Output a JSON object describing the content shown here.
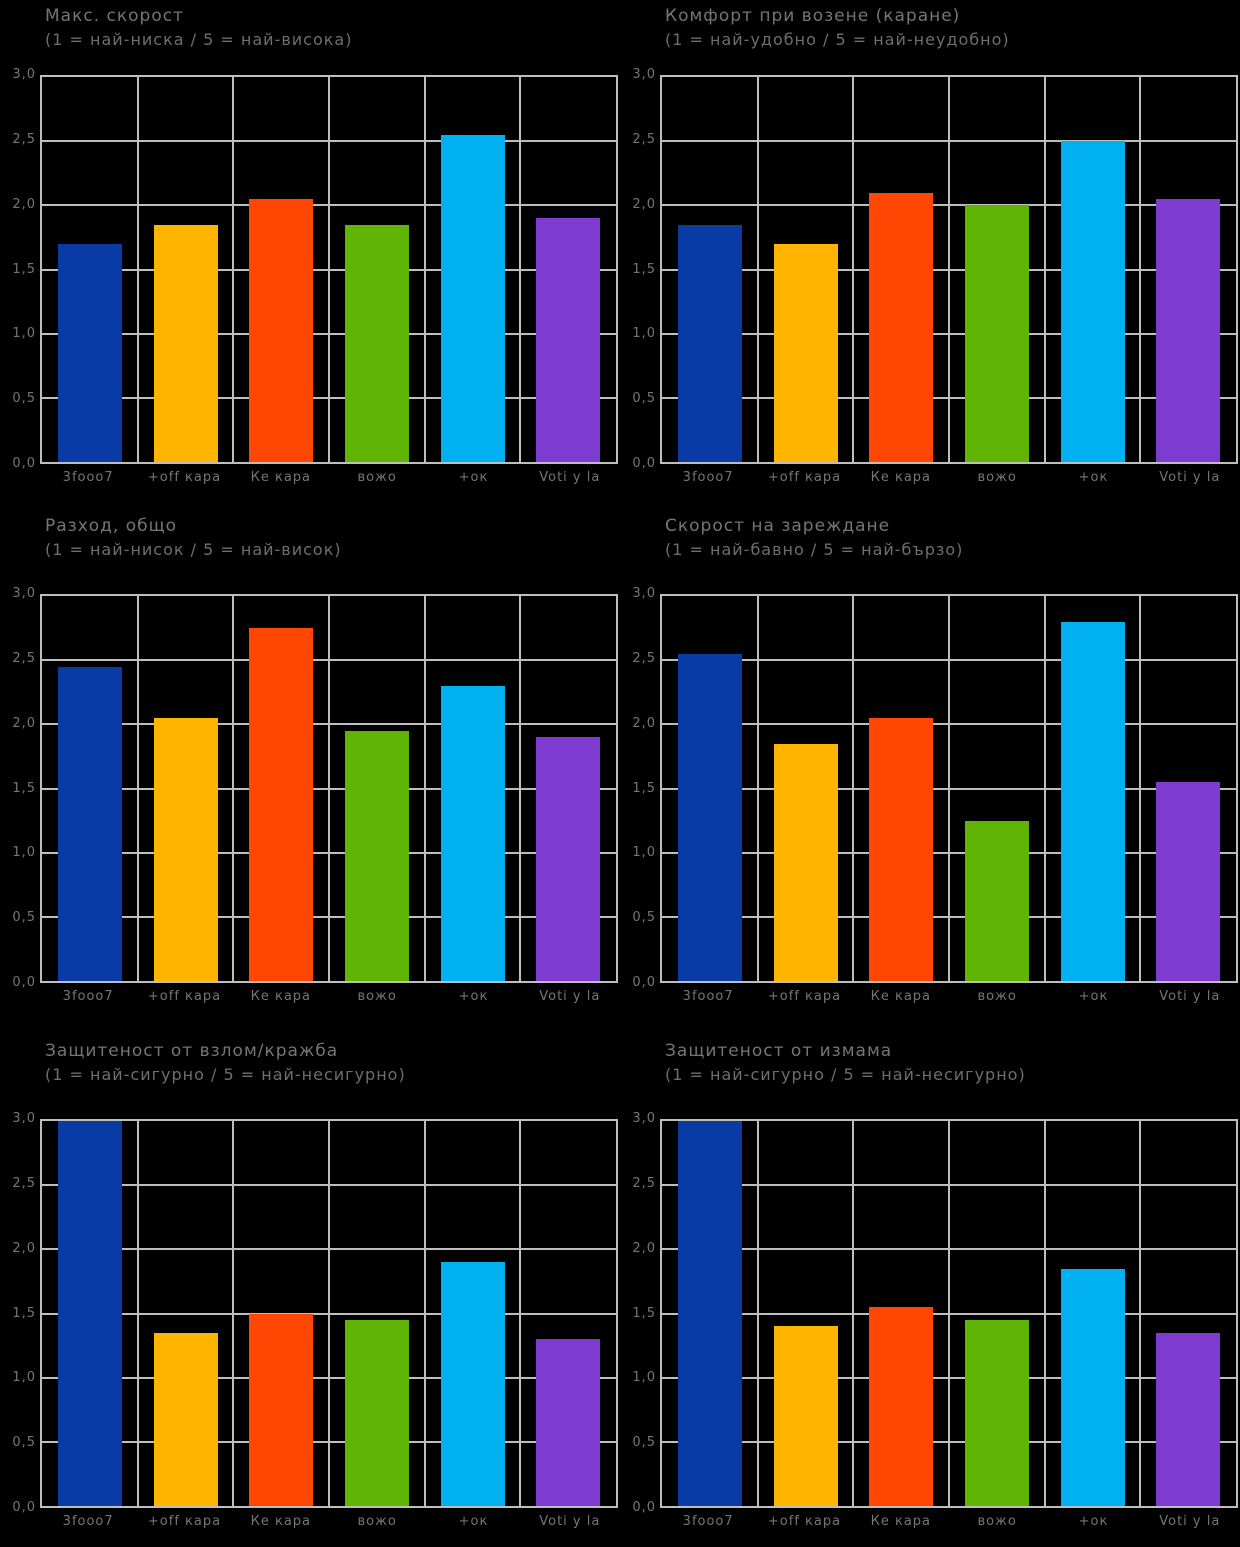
{
  "page": {
    "background": "#000000",
    "grid_layout": "2 columns x 3 rows of bar charts"
  },
  "palette": {
    "gridline": "#BEBEBE",
    "text": "#8A8A8A",
    "plot_background": "#000000"
  },
  "series_colors": [
    "#0A3AA3",
    "#FFB400",
    "#FF4703",
    "#5FB404",
    "#00B0F0",
    "#7D3BD0"
  ],
  "series_color_names": [
    "dark-blue",
    "amber",
    "red-orange",
    "green",
    "cyan",
    "purple"
  ],
  "y_ticks": [
    "3,0",
    "2,5",
    "2,0",
    "1,5",
    "1,0",
    "0,5",
    "0,0"
  ],
  "categories": [
    "3fooo7",
    "+off кара",
    "Ке кара",
    "вожо",
    "+ок",
    "Voti у la"
  ],
  "chart_data": [
    {
      "type": "bar",
      "title": "Макс. скорост",
      "subtitle": "(1 = най-ниска / 5 = най-висока)",
      "categories": [
        "3fooo7",
        "+off кара",
        "Ке кара",
        "вожо",
        "+ок",
        "Voti у la"
      ],
      "values": [
        1.7,
        1.85,
        2.05,
        1.85,
        2.55,
        1.9
      ],
      "ylim": [
        0,
        3
      ],
      "ytick_step": 0.5,
      "grid": true,
      "legend": false
    },
    {
      "type": "bar",
      "title": "Комфорт при возене (каране)",
      "subtitle": "(1 = най-удобно / 5 = най-неудобно)",
      "categories": [
        "3fooo7",
        "+off кара",
        "Ке кара",
        "вожо",
        "+ок",
        "Voti у la"
      ],
      "values": [
        1.85,
        1.7,
        2.1,
        2.0,
        2.5,
        2.05
      ],
      "ylim": [
        0,
        3
      ],
      "ytick_step": 0.5,
      "grid": true,
      "legend": false
    },
    {
      "type": "bar",
      "title": "Разход, общо",
      "subtitle": "(1 = най-нисок / 5 = най-висок)",
      "categories": [
        "3fooo7",
        "+off кара",
        "Ке кара",
        "вожо",
        "+ок",
        "Voti у la"
      ],
      "values": [
        2.45,
        2.05,
        2.75,
        1.95,
        2.3,
        1.9
      ],
      "ylim": [
        0,
        3
      ],
      "ytick_step": 0.5,
      "grid": true,
      "legend": false
    },
    {
      "type": "bar",
      "title": "Скорост на зареждане",
      "subtitle": "(1 = най-бавно / 5 = най-бързо)",
      "categories": [
        "3fooo7",
        "+off кара",
        "Ке кара",
        "вожо",
        "+ок",
        "Voti у la"
      ],
      "values": [
        2.55,
        1.85,
        2.05,
        1.25,
        2.8,
        1.55
      ],
      "ylim": [
        0,
        3
      ],
      "ytick_step": 0.5,
      "grid": true,
      "legend": false
    },
    {
      "type": "bar",
      "title": "Защитеност от взлом/кражба",
      "subtitle": "(1 = най-сигурно / 5 = най-несигурно)",
      "categories": [
        "3fooo7",
        "+off кара",
        "Ке кара",
        "вожо",
        "+ок",
        "Voti у la"
      ],
      "values": [
        3.0,
        1.35,
        1.5,
        1.45,
        1.9,
        1.3
      ],
      "ylim": [
        0,
        3
      ],
      "ytick_step": 0.5,
      "grid": true,
      "legend": false
    },
    {
      "type": "bar",
      "title": "Защитеност от измама",
      "subtitle": "(1 = най-сигурно / 5 = най-несигурно)",
      "categories": [
        "3fooo7",
        "+off кара",
        "Ке кара",
        "вожо",
        "+ок",
        "Voti у la"
      ],
      "values": [
        3.0,
        1.4,
        1.55,
        1.45,
        1.85,
        1.35
      ],
      "ylim": [
        0,
        3
      ],
      "ytick_step": 0.5,
      "grid": true,
      "legend": false
    }
  ]
}
